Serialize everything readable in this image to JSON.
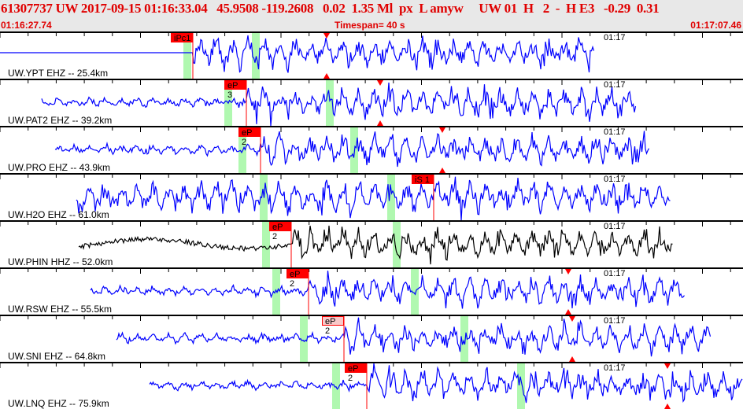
{
  "header": {
    "event_line": "61307737 UW 2017-09-15 01:16:33.04   45.9508 -119.2608   0.02  1.35 Ml  px  L amyw     UW 01  H   2  -  H E3   -0.29  0.31",
    "start_time": "01:16:27.74",
    "timespan": "Timespan=  40 s",
    "end_time": "01:17:07.46"
  },
  "colors": {
    "header_text": "#e00000",
    "trace": "#0000ff",
    "trace_selected": "#000000",
    "pick": "#ff0000",
    "window": "#b0f8b0",
    "header_bg": "#e8e8e8"
  },
  "minute_mark": "01:17",
  "panels": [
    {
      "label": "UW.YPT EHZ -- 25.4km",
      "pick_label": "iPc1",
      "color": "#0000ff"
    },
    {
      "label": "UW.PAT2 EHZ -- 39.2km",
      "pick_label": "eP 3",
      "color": "#0000ff"
    },
    {
      "label": "UW.PRO EHZ -- 43.9km",
      "pick_label": "eP 2",
      "color": "#0000ff"
    },
    {
      "label": "UW.H2O EHZ -- 61.0km",
      "pick_label": "iS 1",
      "color": "#0000ff"
    },
    {
      "label": "UW.PHIN HHZ -- 52.0km",
      "pick_label": "eP 2",
      "color": "#000000"
    },
    {
      "label": "UW.RSW EHZ -- 55.5km",
      "pick_label": "eP 2",
      "color": "#0000ff"
    },
    {
      "label": "UW.SNI EHZ -- 64.8km",
      "pick_label": "eP 2",
      "color": "#0000ff",
      "pick_style": "pale"
    },
    {
      "label": "UW.LNQ EHZ -- 75.9km",
      "pick_label": "eP 2",
      "color": "#0000ff"
    }
  ]
}
